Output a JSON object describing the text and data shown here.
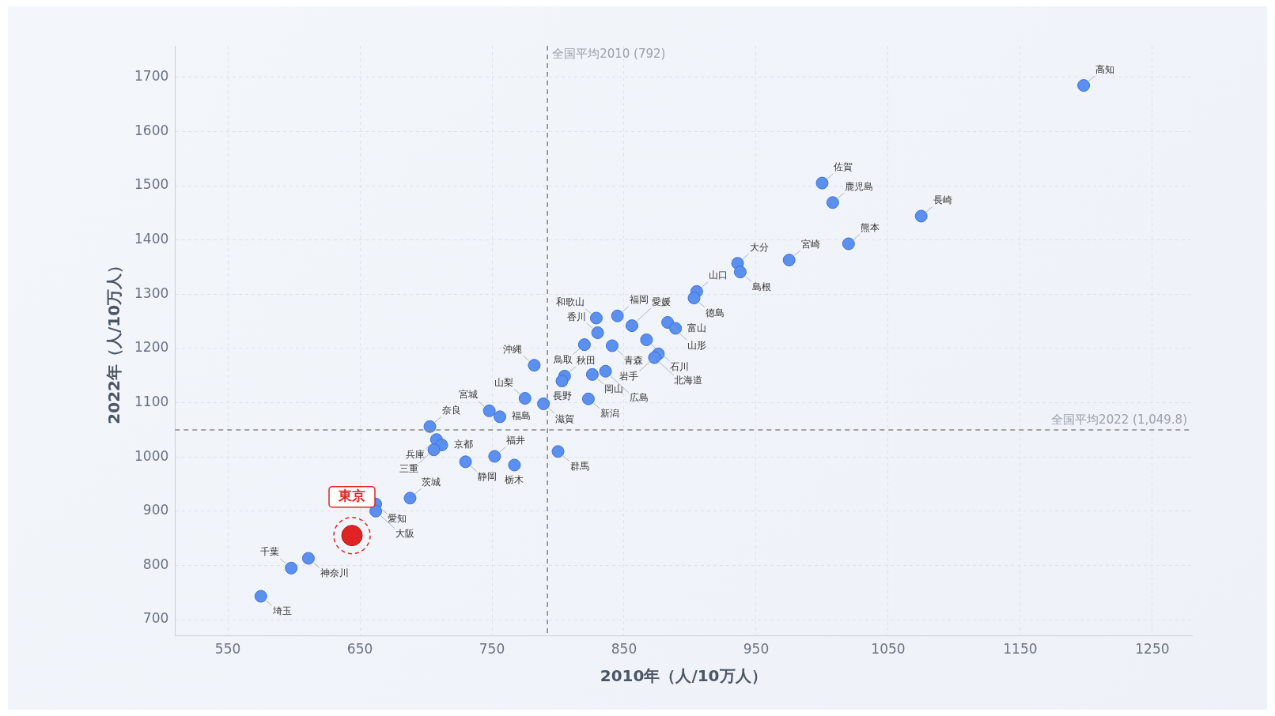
{
  "chart_data": {
    "type": "scatter",
    "xlabel": "2010年（人/10万人）",
    "ylabel": "2022年（人/10万人）",
    "xlim": [
      510,
      1280
    ],
    "ylim": [
      670,
      1758
    ],
    "xticks": [
      550,
      650,
      750,
      850,
      950,
      1050,
      1150,
      1250
    ],
    "yticks": [
      700,
      800,
      900,
      1000,
      1100,
      1200,
      1300,
      1400,
      1500,
      1600,
      1700
    ],
    "grid": true,
    "legend": false,
    "marker": "circle",
    "series": [
      {
        "color": "#5b8ff0",
        "x": [
          1198,
          1000,
          1008,
          1075,
          1020,
          975,
          936,
          938,
          905,
          903,
          829,
          845,
          856,
          883,
          889,
          830,
          867,
          841,
          820,
          876,
          873,
          782,
          805,
          803,
          826,
          836,
          775,
          789,
          823,
          748,
          756,
          703,
          708,
          712,
          706,
          730,
          752,
          767,
          800,
          662,
          662,
          688,
          611,
          598,
          575
        ],
        "values": [
          1685,
          1505,
          1469,
          1444,
          1393,
          1363,
          1357,
          1341,
          1305,
          1293,
          1256,
          1260,
          1242,
          1248,
          1237,
          1229,
          1216,
          1205,
          1207,
          1190,
          1183,
          1169,
          1149,
          1140,
          1152,
          1158,
          1108,
          1098,
          1107,
          1085,
          1074,
          1056,
          1032,
          1022,
          1013,
          991,
          1001,
          985,
          1010,
          913,
          900,
          924,
          813,
          795,
          743
        ]
      },
      {
        "name": "東京",
        "color": "#e02424",
        "x": [
          644
        ],
        "values": [
          855
        ]
      }
    ],
    "ref_lines": [
      {
        "axis": "x",
        "value": 792,
        "label": "全国平均2010 (792)",
        "color": "#888888",
        "line_style": "dashed"
      },
      {
        "axis": "y",
        "value": 1049.8,
        "label": "全国平均2022 (1,049.8)",
        "color": "#888888",
        "line_style": "dashed"
      }
    ],
    "annotations": [
      {
        "text": "高知",
        "x": 1198,
        "y": 1685
      },
      {
        "text": "佐賀",
        "x": 1000,
        "y": 1505
      },
      {
        "text": "鹿児島",
        "x": 1008,
        "y": 1469
      },
      {
        "text": "長崎",
        "x": 1075,
        "y": 1444
      },
      {
        "text": "熊本",
        "x": 1020,
        "y": 1393
      },
      {
        "text": "宮崎",
        "x": 975,
        "y": 1363
      },
      {
        "text": "大分",
        "x": 936,
        "y": 1357
      },
      {
        "text": "島根",
        "x": 938,
        "y": 1341
      },
      {
        "text": "山口",
        "x": 905,
        "y": 1305
      },
      {
        "text": "徳島",
        "x": 903,
        "y": 1293
      },
      {
        "text": "和歌山",
        "x": 829,
        "y": 1256
      },
      {
        "text": "福岡",
        "x": 845,
        "y": 1260
      },
      {
        "text": "愛媛",
        "x": 856,
        "y": 1242
      },
      {
        "text": "山形",
        "x": 883,
        "y": 1248
      },
      {
        "text": "富山",
        "x": 889,
        "y": 1237
      },
      {
        "text": "香川",
        "x": 830,
        "y": 1229
      },
      {
        "text": "石川",
        "x": 867,
        "y": 1216
      },
      {
        "text": "青森",
        "x": 841,
        "y": 1205
      },
      {
        "text": "鳥取",
        "x": 820,
        "y": 1207
      },
      {
        "text": "岩手",
        "x": 876,
        "y": 1190
      },
      {
        "text": "北海道",
        "x": 873,
        "y": 1183
      },
      {
        "text": "沖縄",
        "x": 782,
        "y": 1169
      },
      {
        "text": "秋田",
        "x": 805,
        "y": 1149
      },
      {
        "text": "長野",
        "x": 803,
        "y": 1140
      },
      {
        "text": "岡山",
        "x": 826,
        "y": 1152
      },
      {
        "text": "広島",
        "x": 836,
        "y": 1158
      },
      {
        "text": "山梨",
        "x": 775,
        "y": 1108
      },
      {
        "text": "滋賀",
        "x": 789,
        "y": 1098
      },
      {
        "text": "新潟",
        "x": 823,
        "y": 1107
      },
      {
        "text": "宮城",
        "x": 748,
        "y": 1085
      },
      {
        "text": "福島",
        "x": 756,
        "y": 1074
      },
      {
        "text": "奈良",
        "x": 703,
        "y": 1056
      },
      {
        "text": "兵庫",
        "x": 708,
        "y": 1032
      },
      {
        "text": "京都",
        "x": 712,
        "y": 1022
      },
      {
        "text": "三重",
        "x": 706,
        "y": 1013
      },
      {
        "text": "静岡",
        "x": 730,
        "y": 991
      },
      {
        "text": "福井",
        "x": 752,
        "y": 1001
      },
      {
        "text": "栃木",
        "x": 767,
        "y": 985
      },
      {
        "text": "群馬",
        "x": 800,
        "y": 1010
      },
      {
        "text": "愛知",
        "x": 662,
        "y": 913
      },
      {
        "text": "大阪",
        "x": 662,
        "y": 900
      },
      {
        "text": "茨城",
        "x": 688,
        "y": 924
      },
      {
        "text": "神奈川",
        "x": 611,
        "y": 813
      },
      {
        "text": "千葉",
        "x": 598,
        "y": 795
      },
      {
        "text": "埼玉",
        "x": 575,
        "y": 743
      }
    ]
  }
}
